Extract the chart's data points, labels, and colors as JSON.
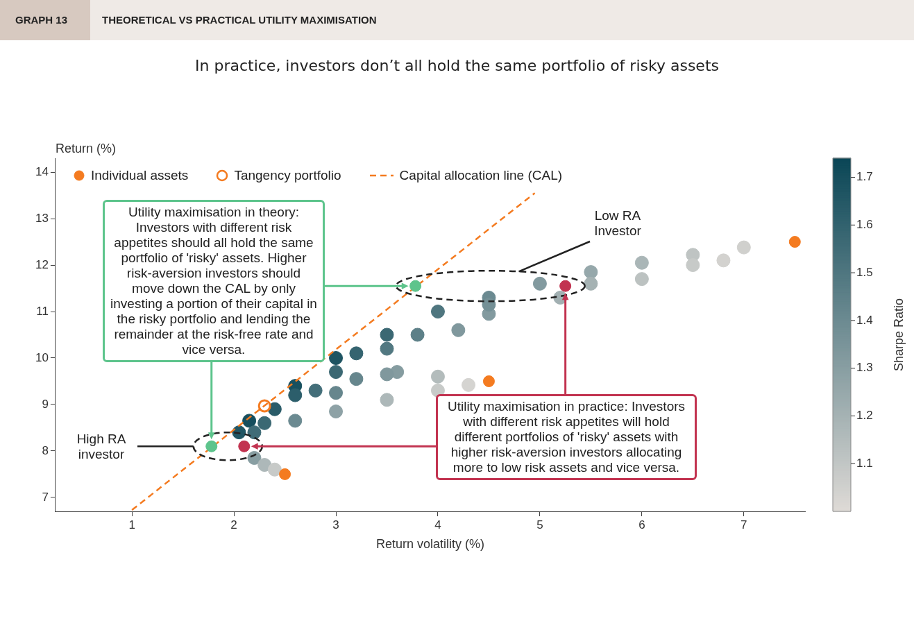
{
  "chart_data": {
    "type": "scatter",
    "title": "THEORETICAL VS PRACTICAL UTILITY MAXIMISATION",
    "subtitle": "In practice, investors don’t all hold the same portfolio of risky assets",
    "xlabel": "Return volatility (%)",
    "ylabel": "Return (%)",
    "clabel": "Sharpe Ratio",
    "xlim": [
      0.25,
      7.6
    ],
    "xticks": [
      1,
      2,
      3,
      4,
      5,
      6,
      7
    ],
    "ylim": [
      6.7,
      14.3
    ],
    "yticks": [
      7,
      8,
      9,
      10,
      11,
      12,
      13,
      14
    ],
    "clim": [
      1.0,
      1.74
    ],
    "cticks": [
      1.1,
      1.2,
      1.3,
      1.4,
      1.5,
      1.6,
      1.7
    ],
    "grid": false,
    "legend": "top left",
    "marker": "circle",
    "annotations": [
      "GRAPH 13",
      "Utility maximisation in theory: Investors with different risk appetites should all hold the same portfolio of 'risky' assets. Higher risk-aversion investors should move down the CAL by only investing a portion of their capital in the risky portfolio and lending the remainder at the risk-free rate and vice versa.",
      {
        "text": "Utility maximisation in practice: Investors with different risk appetites will hold different portfolios of 'risky' assets with higher risk-aversion investors allocating more to low risk assets and vice versa.",
        "x": 5.25,
        "y": 11.4
      },
      "Low RA Investor",
      "High RA investor"
    ],
    "series": [
      {
        "colors": [
          "#215664",
          "#164e5d",
          "#18505f",
          "#1e5462",
          "#3b6873",
          "#4f767f",
          "#6b8a91",
          "#829a9f",
          "#96a8ab",
          "#aab6b7",
          "#bfc4c3",
          "#d0d0cd",
          "#356470",
          "#5d8088",
          "#829a9f",
          "#a2b0b2",
          "#bcc2c1",
          "#d3d2cf",
          "#406c77",
          "#6b8a91",
          "#8ea2a6",
          "#adb8b9",
          "#c7cac8",
          "#d5d4d1",
          "#2a5c69",
          "#436e79",
          "#66868d",
          "#859ca0",
          "#b3bcbc",
          "#2c5e6b",
          "#3b6873",
          "#527881",
          "#80989d",
          "#889ea2",
          "#adb8b9",
          "#c7cac8",
          "#749096",
          "#a5b2b3",
          "#c7cac8",
          "#66868d",
          "#3b6873",
          "#80989d"
        ],
        "x": [
          2.05,
          2.15,
          2.6,
          3.0,
          3.5,
          4.0,
          4.5,
          5.0,
          5.5,
          6.0,
          6.5,
          7.0,
          3.2,
          3.8,
          4.5,
          5.2,
          6.0,
          6.8,
          2.2,
          2.6,
          3.0,
          3.5,
          4.0,
          4.3,
          2.4,
          2.8,
          3.2,
          3.6,
          4.0,
          2.6,
          3.0,
          3.5,
          4.2,
          2.2,
          2.3,
          2.4,
          4.5,
          5.5,
          6.5,
          3.0,
          2.3,
          3.5
        ],
        "values": [
          8.4,
          8.65,
          9.4,
          10.0,
          10.5,
          11.0,
          11.3,
          11.6,
          11.85,
          12.05,
          12.22,
          12.38,
          10.1,
          10.5,
          10.95,
          11.3,
          11.7,
          12.1,
          8.4,
          8.65,
          8.85,
          9.1,
          9.3,
          9.42,
          8.9,
          9.3,
          9.55,
          9.7,
          9.6,
          9.2,
          9.7,
          10.2,
          10.6,
          7.85,
          7.7,
          7.6,
          11.15,
          11.6,
          12.0,
          9.25,
          8.6,
          9.65
        ],
        "cvalues": [
          1.66,
          1.7,
          1.69,
          1.67,
          1.57,
          1.5,
          1.4,
          1.32,
          1.25,
          1.18,
          1.11,
          1.05,
          1.59,
          1.45,
          1.32,
          1.21,
          1.12,
          1.04,
          1.55,
          1.4,
          1.28,
          1.17,
          1.08,
          1.03,
          1.63,
          1.54,
          1.42,
          1.31,
          1.15,
          1.62,
          1.57,
          1.49,
          1.33,
          1.3,
          1.17,
          1.08,
          1.37,
          1.2,
          1.08,
          1.42,
          1.57,
          1.33
        ]
      },
      {
        "name": "Individual assets",
        "color": "#f47b20",
        "x": [
          2.5,
          4.5,
          7.5
        ],
        "values": [
          7.5,
          9.5,
          12.5
        ]
      },
      {
        "name": "Tangency portfolio",
        "color": "#f47b20",
        "x": [
          2.3
        ],
        "values": [
          8.97
        ]
      },
      {
        "name": "Capital allocation line (CAL)",
        "type": "line",
        "color": "#f47b20",
        "line_style": "dashed",
        "marker": "none",
        "x": [
          1,
          4.95
        ],
        "values": [
          6.73,
          13.55
        ]
      },
      {
        "color": "#5dc48c",
        "x": [
          1.78,
          3.78
        ],
        "values": [
          8.1,
          11.55
        ]
      },
      {
        "color": "#c23350",
        "x": [
          2.1,
          5.25
        ],
        "values": [
          8.1,
          11.55
        ]
      }
    ]
  }
}
